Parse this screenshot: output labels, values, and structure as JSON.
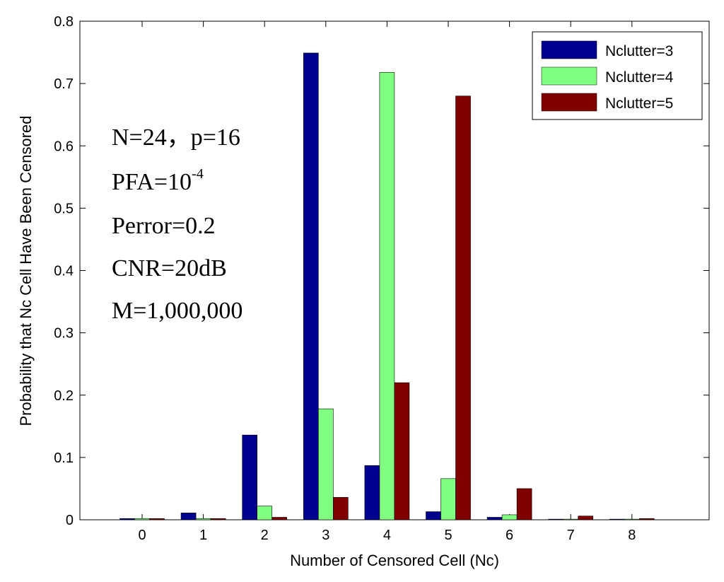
{
  "chart_data": {
    "type": "bar",
    "categories": [
      "0",
      "1",
      "2",
      "3",
      "4",
      "5",
      "6",
      "7",
      "8"
    ],
    "series": [
      {
        "name": "Nclutter=3",
        "color": "#00008f",
        "values": [
          0.002,
          0.011,
          0.136,
          0.749,
          0.087,
          0.013,
          0.004,
          0.001,
          0.001
        ]
      },
      {
        "name": "Nclutter=4",
        "color": "#80ff80",
        "values": [
          0.002,
          0.002,
          0.022,
          0.178,
          0.718,
          0.066,
          0.008,
          0.001,
          0.001
        ]
      },
      {
        "name": "Nclutter=5",
        "color": "#800000",
        "values": [
          0.002,
          0.002,
          0.004,
          0.036,
          0.22,
          0.68,
          0.05,
          0.006,
          0.002
        ]
      }
    ],
    "xlabel": "Number of Censored Cell (Nc)",
    "ylabel": "Probability that Nc Cell Have Been Censored",
    "ylim": [
      0,
      0.8
    ],
    "yticks": [
      "0",
      "0.1",
      "0.2",
      "0.3",
      "0.4",
      "0.5",
      "0.6",
      "0.7",
      "0.8"
    ],
    "legend_position": "top-right",
    "annotations": {
      "line1": "N=24，p=16",
      "line2_base": "PFA=10",
      "line2_exp": "-4",
      "line3": "Perror=0.2",
      "line4": "CNR=20dB",
      "line5": "M=1,000,000"
    }
  }
}
